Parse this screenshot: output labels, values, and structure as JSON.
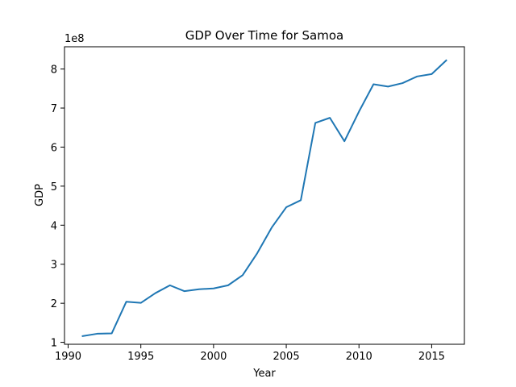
{
  "chart_data": {
    "type": "line",
    "title": "GDP Over Time for Samoa",
    "xlabel": "Year",
    "ylabel": "GDP",
    "y_offset_label": "1e8",
    "xlim": [
      1989.75,
      2017.25
    ],
    "ylim": [
      0.95,
      8.57
    ],
    "x_ticks": [
      1990,
      1995,
      2000,
      2005,
      2010,
      2015
    ],
    "y_ticks": [
      1,
      2,
      3,
      4,
      5,
      6,
      7,
      8
    ],
    "grid": false,
    "series": [
      {
        "name": "GDP",
        "color": "#1f77b4",
        "x": [
          1991,
          1992,
          1993,
          1994,
          1995,
          1996,
          1997,
          1998,
          1999,
          2000,
          2001,
          2002,
          2003,
          2004,
          2005,
          2006,
          2007,
          2008,
          2009,
          2010,
          2011,
          2012,
          2013,
          2014,
          2015,
          2016
        ],
        "y": [
          1.16,
          1.22,
          1.23,
          2.04,
          2.01,
          2.26,
          2.46,
          2.31,
          2.36,
          2.38,
          2.46,
          2.72,
          3.28,
          3.94,
          4.46,
          4.64,
          6.62,
          6.75,
          6.15,
          6.91,
          7.61,
          7.55,
          7.64,
          7.81,
          7.87,
          8.22
        ]
      }
    ]
  }
}
